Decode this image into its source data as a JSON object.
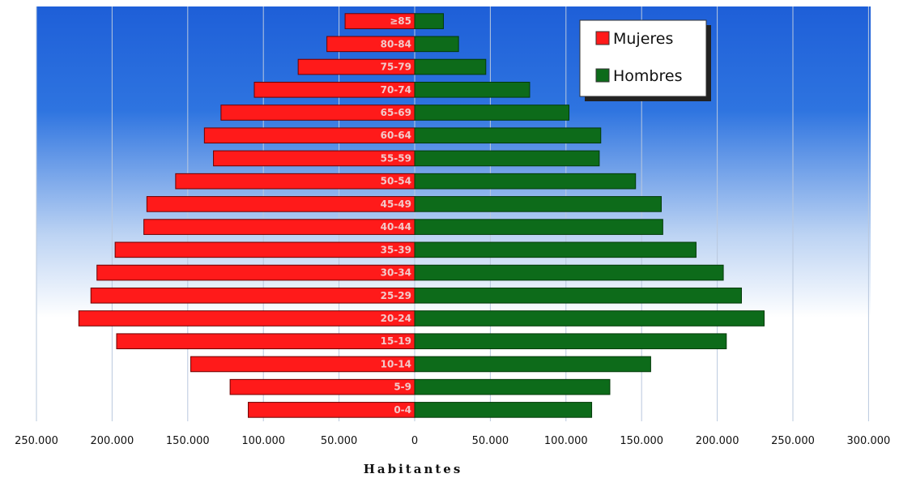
{
  "chart_data": {
    "type": "bar",
    "orientation": "horizontal",
    "layout": "population-pyramid",
    "categories": [
      "0-4",
      "5-9",
      "10-14",
      "15-19",
      "20-24",
      "25-29",
      "30-34",
      "35-39",
      "40-44",
      "45-49",
      "50-54",
      "55-59",
      "60-64",
      "65-69",
      "70-74",
      "75-79",
      "80-84",
      "≥85"
    ],
    "series": [
      {
        "name": "Mujeres",
        "values": [
          110000,
          122000,
          148000,
          197000,
          222000,
          214000,
          210000,
          198000,
          179000,
          177000,
          158000,
          133000,
          139000,
          128000,
          106000,
          77000,
          58000,
          46000
        ]
      },
      {
        "name": "Hombres",
        "values": [
          117000,
          129000,
          156000,
          206000,
          231000,
          216000,
          204000,
          186000,
          164000,
          163000,
          146000,
          122000,
          123000,
          102000,
          76000,
          47000,
          29000,
          19000
        ]
      }
    ],
    "xlabel": "Habitantes",
    "xlim": [
      -250000,
      300000
    ],
    "xticks": [
      -250000,
      -200000,
      -150000,
      -100000,
      -50000,
      0,
      50000,
      100000,
      150000,
      200000,
      250000,
      300000
    ],
    "xtick_labels": [
      "250.000",
      "200.000",
      "150.000",
      "100.000",
      "50.000",
      "0",
      "50.000",
      "100.000",
      "150.000",
      "200.000",
      "250.000",
      "300.000"
    ],
    "grid": "vertical",
    "legend_position": "top-right",
    "colors": {
      "Mujeres": "#ff1a1a",
      "Hombres": "#0d6b1a",
      "background_top": "#1e5fd8",
      "background_bottom": "#ffffff"
    }
  }
}
